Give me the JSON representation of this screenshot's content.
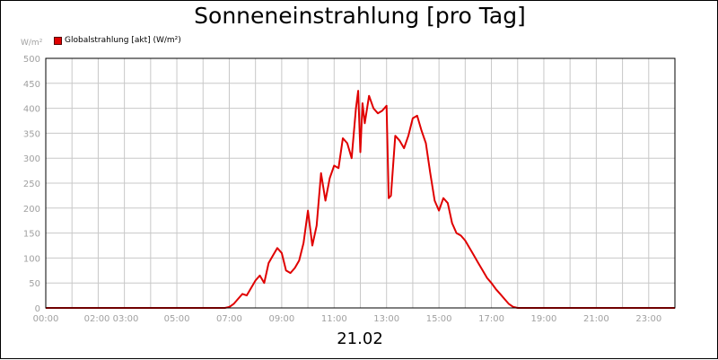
{
  "chart_data": {
    "type": "line",
    "title": "Sonneneinstrahlung [pro Tag]",
    "ylabel": "W/m²",
    "xlabel": "21.02",
    "ylim": [
      0,
      500
    ],
    "xlim_hours": [
      0,
      24
    ],
    "grid": true,
    "legend_position": "top-left",
    "xtick_labels": [
      "00:00",
      "02:00 03:00",
      "05:00",
      "07:00",
      "09:00",
      "11:00",
      "13:00",
      "15:00",
      "17:00",
      "19:00",
      "21:00",
      "23:00"
    ],
    "xtick_hours": [
      0,
      2.5,
      5,
      7,
      9,
      11,
      13,
      15,
      17,
      19,
      21,
      23
    ],
    "ytick_labels": [
      "0",
      "50",
      "100",
      "150",
      "200",
      "250",
      "300",
      "350",
      "400",
      "450",
      "500"
    ],
    "series": [
      {
        "name": "Globalstrahlung [akt] (W/m²)",
        "color": "#e00000",
        "x": [
          "00:00",
          "06:50",
          "07:00",
          "07:10",
          "07:20",
          "07:30",
          "07:40",
          "07:50",
          "08:00",
          "08:10",
          "08:20",
          "08:30",
          "08:40",
          "08:50",
          "09:00",
          "09:10",
          "09:20",
          "09:30",
          "09:40",
          "09:50",
          "10:00",
          "10:10",
          "10:20",
          "10:30",
          "10:40",
          "10:50",
          "11:00",
          "11:10",
          "11:20",
          "11:30",
          "11:40",
          "11:50",
          "11:55",
          "12:00",
          "12:05",
          "12:10",
          "12:20",
          "12:30",
          "12:40",
          "12:50",
          "13:00",
          "13:05",
          "13:10",
          "13:20",
          "13:30",
          "13:40",
          "13:50",
          "14:00",
          "14:10",
          "14:20",
          "14:30",
          "14:40",
          "14:50",
          "15:00",
          "15:10",
          "15:20",
          "15:30",
          "15:40",
          "15:50",
          "16:00",
          "16:10",
          "16:20",
          "16:30",
          "16:40",
          "16:50",
          "17:00",
          "17:10",
          "17:20",
          "17:30",
          "17:40",
          "17:50",
          "18:00",
          "24:00"
        ],
        "values": [
          0,
          0,
          2,
          8,
          18,
          28,
          25,
          40,
          55,
          65,
          50,
          90,
          105,
          120,
          110,
          75,
          70,
          80,
          95,
          130,
          195,
          125,
          165,
          270,
          215,
          260,
          285,
          280,
          340,
          330,
          300,
          400,
          435,
          312,
          410,
          370,
          425,
          400,
          390,
          395,
          405,
          220,
          225,
          345,
          335,
          320,
          345,
          380,
          385,
          355,
          330,
          270,
          215,
          195,
          220,
          210,
          170,
          150,
          145,
          135,
          120,
          105,
          90,
          75,
          60,
          50,
          38,
          28,
          18,
          8,
          2,
          0,
          0
        ]
      }
    ]
  }
}
